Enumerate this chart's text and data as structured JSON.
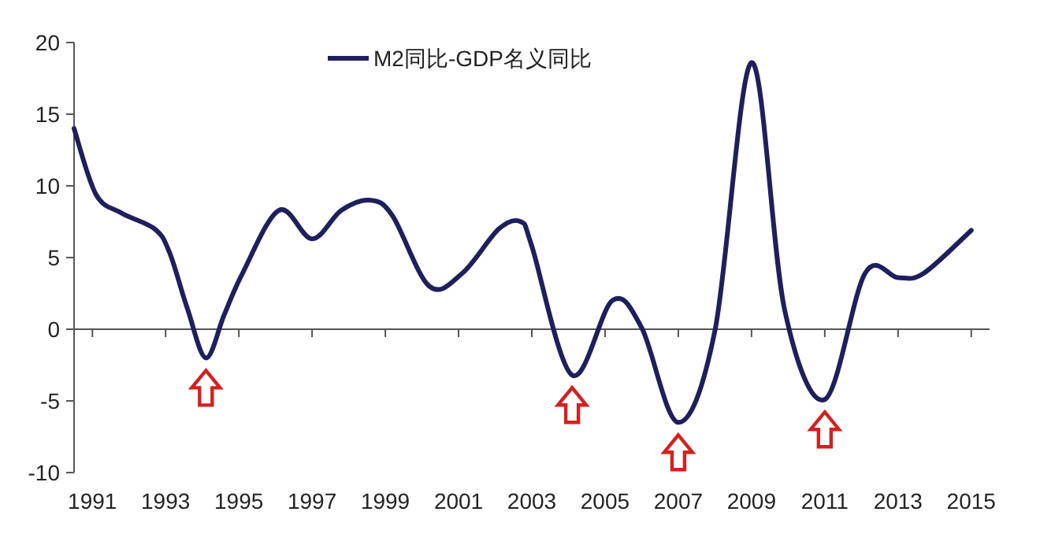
{
  "chart_data": {
    "type": "line",
    "x": [
      1990.5,
      1991.1,
      1991.8,
      1992.7,
      1993.1,
      1993.6,
      1994.1,
      1994.6,
      1995.1,
      1996.1,
      1997.0,
      1997.8,
      1998.6,
      1999.2,
      2000.2,
      2001.1,
      2002.1,
      2002.7,
      2003.0,
      2004.1,
      2005.2,
      2006.0,
      2007.0,
      2008.0,
      2009.0,
      2009.9,
      2011.0,
      2012.1,
      2013.0,
      2013.7,
      2015.0
    ],
    "series": [
      {
        "name": "M2同比-GDP名义同比",
        "color": "#1f1f5e",
        "values": [
          14.0,
          9.4,
          8.1,
          7.0,
          5.4,
          1.4,
          -2.0,
          1.0,
          3.9,
          8.3,
          6.3,
          8.3,
          9.0,
          7.9,
          3.0,
          3.9,
          7.0,
          7.5,
          5.8,
          -3.2,
          2.0,
          0.1,
          -6.5,
          -0.1,
          18.6,
          1.4,
          -4.9,
          3.9,
          3.6,
          3.9,
          6.9
        ]
      }
    ],
    "xlim": [
      1990.5,
      2015.5
    ],
    "xticks": [
      1991,
      1993,
      1995,
      1997,
      1999,
      2001,
      2003,
      2005,
      2007,
      2009,
      2011,
      2013,
      2015
    ],
    "ylim": [
      -10,
      20
    ],
    "yticks": [
      -10,
      -5,
      0,
      5,
      10,
      15,
      20
    ],
    "legend": "top",
    "marker": "none",
    "line_style": "solid"
  }
}
